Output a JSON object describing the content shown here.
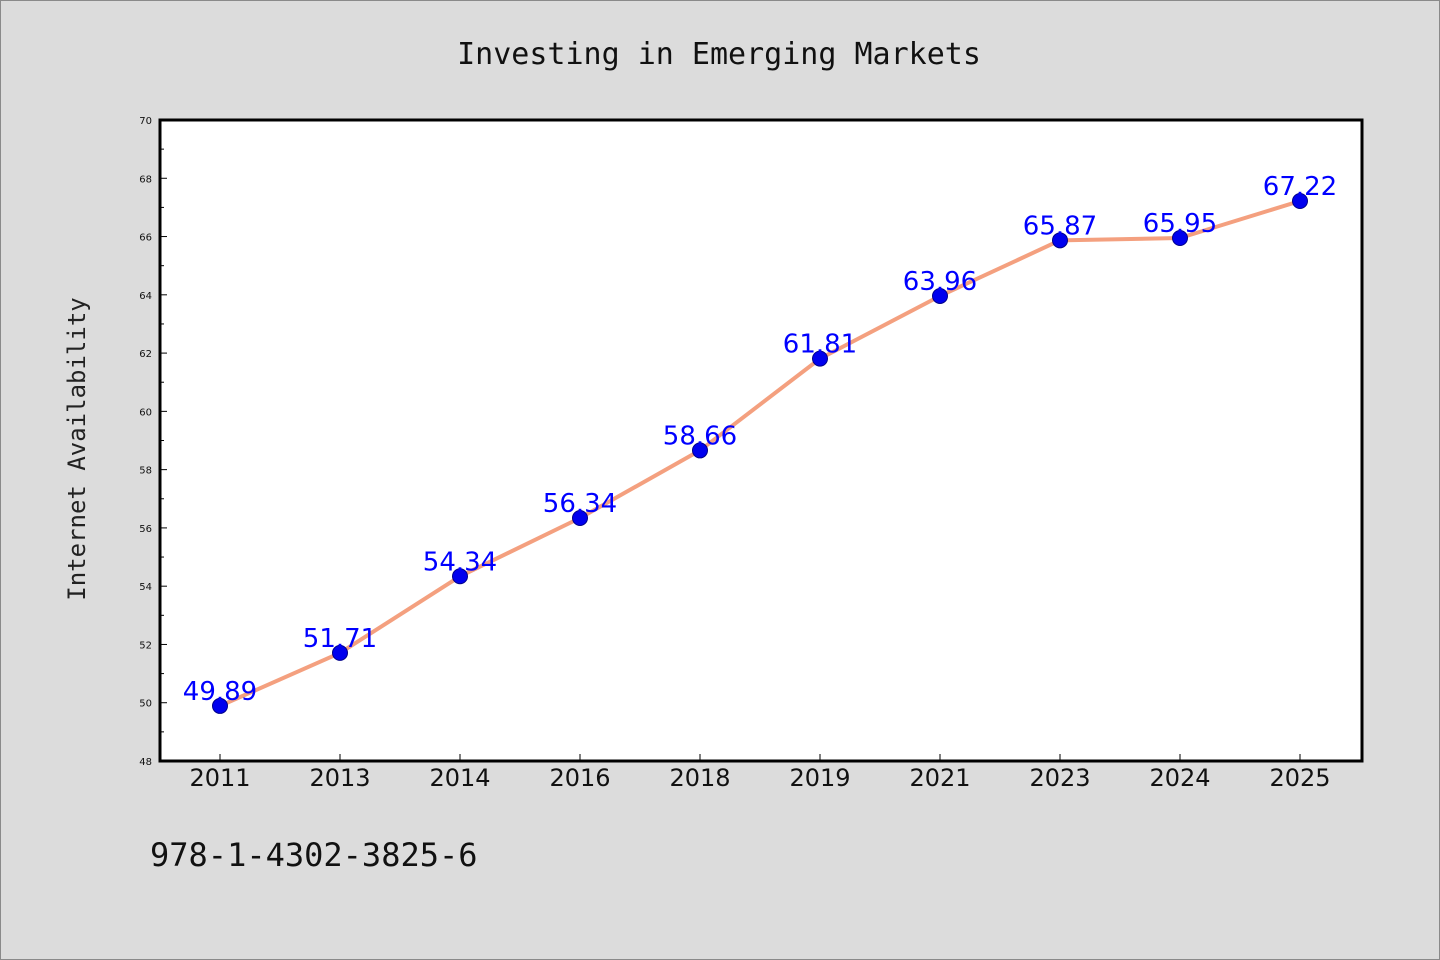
{
  "chart_data": {
    "type": "line",
    "title": "Investing in Emerging Markets",
    "xlabel": "",
    "ylabel": "Internet Availability",
    "categories": [
      "2011",
      "2013",
      "2014",
      "2016",
      "2018",
      "2019",
      "2021",
      "2023",
      "2024",
      "2025"
    ],
    "series": [
      {
        "values": [
          49.89,
          51.71,
          54.34,
          56.34,
          58.66,
          61.81,
          63.96,
          65.87,
          65.95,
          67.22
        ]
      }
    ],
    "data_labels": [
      "49.89",
      "51.71",
      "54.34",
      "56.34",
      "58.66",
      "61.81",
      "63.96",
      "65.87",
      "65.95",
      "67.22"
    ],
    "ylim": [
      48,
      70
    ],
    "yticks": [
      "48",
      "50",
      "52",
      "54",
      "56",
      "58",
      "60",
      "62",
      "64",
      "66",
      "68",
      "70"
    ],
    "grid": false,
    "legend": "none",
    "colors": {
      "line": "#f4a07f",
      "marker": "#0000ee",
      "label": "#0000ff",
      "background": "#dcdcdc",
      "plot_bg": "#ffffff"
    }
  },
  "footer": {
    "isbn": "978-1-4302-3825-6"
  }
}
